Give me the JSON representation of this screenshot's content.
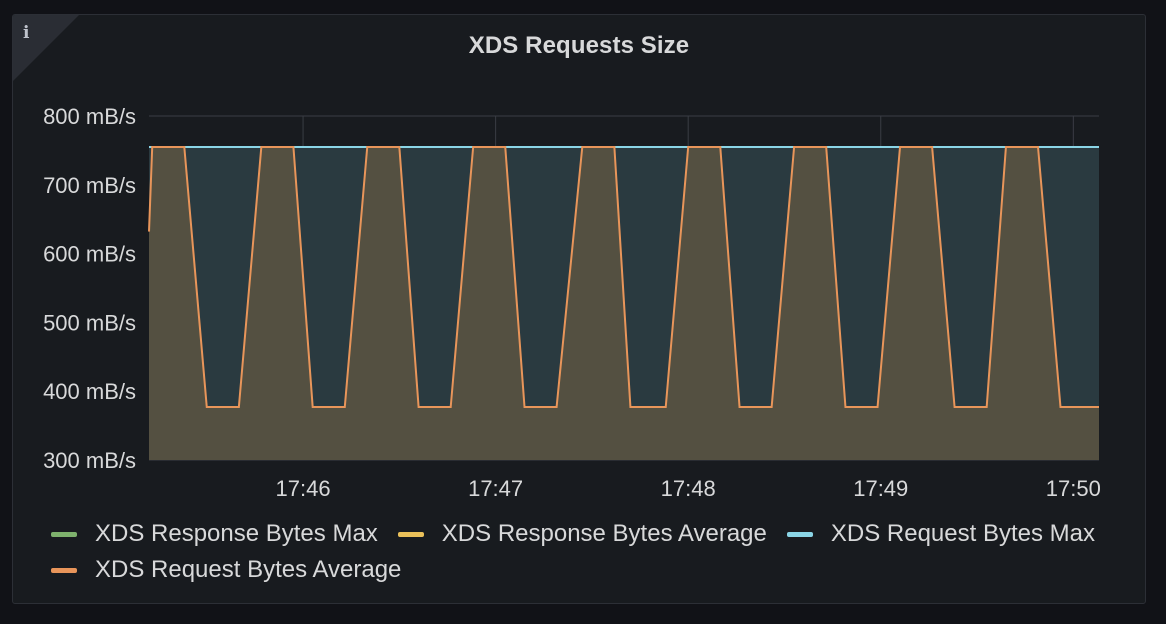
{
  "panel": {
    "title": "XDS Requests Size",
    "info_icon": "info-icon"
  },
  "colors": {
    "grid": "#3a3d44",
    "axis_text": "#d8d9da",
    "request_bytes_max": "#8ad5e6",
    "request_bytes_average": "#e8955a",
    "response_bytes_max": "#7eb26d",
    "response_bytes_average": "#eac15a",
    "max_fill": "#2a3a40",
    "average_fill": "#545041"
  },
  "chart_data": {
    "type": "area",
    "title": "XDS Requests Size",
    "xlabel": "",
    "ylabel": "",
    "grid": true,
    "legend_placement": "bottom",
    "y_unit": "mB/s",
    "ylim": [
      300,
      800
    ],
    "y_ticks": [
      "300 mB/s",
      "400 mB/s",
      "500 mB/s",
      "600 mB/s",
      "700 mB/s",
      "800 mB/s"
    ],
    "xlim": [
      "17:45:12",
      "17:50:08"
    ],
    "x_ticks": [
      "17:46",
      "17:47",
      "17:48",
      "17:49",
      "17:50"
    ],
    "series": [
      {
        "name": "XDS Response Bytes Max",
        "color": "#7eb26d",
        "x": [],
        "values": []
      },
      {
        "name": "XDS Response Bytes Average",
        "color": "#eac15a",
        "x": [],
        "values": []
      },
      {
        "name": "XDS Request Bytes Max",
        "color": "#8ad5e6",
        "x": [
          "17:45:12",
          "17:50:08"
        ],
        "values": [
          755,
          755
        ]
      },
      {
        "name": "XDS Request Bytes Average",
        "color": "#e8955a",
        "x": [
          "17:45:12",
          "17:45:13",
          "17:45:15",
          "17:45:23",
          "17:45:30",
          "17:45:40",
          "17:45:47",
          "17:45:57",
          "17:46:03",
          "17:46:13",
          "17:46:20",
          "17:46:30",
          "17:46:36",
          "17:46:46",
          "17:46:53",
          "17:47:03",
          "17:47:09",
          "17:47:19",
          "17:47:27",
          "17:47:37",
          "17:47:42",
          "17:47:53",
          "17:48:00",
          "17:48:10",
          "17:48:16",
          "17:48:26",
          "17:48:33",
          "17:48:43",
          "17:48:49",
          "17:48:59",
          "17:49:06",
          "17:49:16",
          "17:49:23",
          "17:49:33",
          "17:49:39",
          "17:49:49",
          "17:49:56",
          "17:50:08"
        ],
        "values": [
          632,
          755,
          755,
          755,
          377,
          377,
          755,
          755,
          377,
          377,
          755,
          755,
          377,
          377,
          755,
          755,
          377,
          377,
          755,
          755,
          377,
          377,
          755,
          755,
          377,
          377,
          755,
          755,
          377,
          377,
          755,
          755,
          377,
          377,
          755,
          755,
          377,
          377
        ]
      }
    ]
  }
}
